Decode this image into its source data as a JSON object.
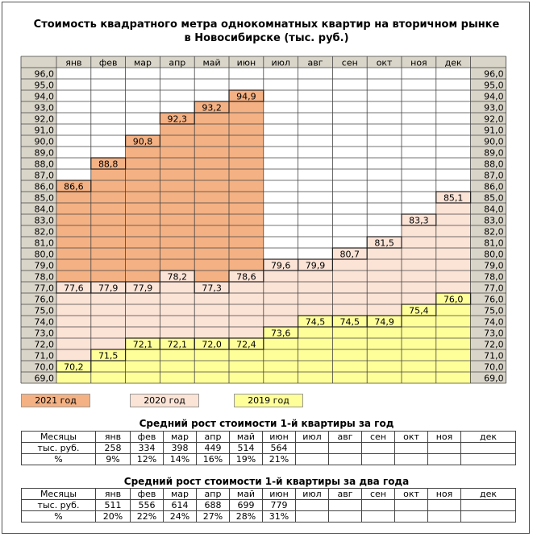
{
  "title_line1": "Стоимость квадратного метра однокомнатных квартир на вторичном рынке",
  "title_line2": "в Новосибирске (тыс. руб.)",
  "chart_data": {
    "type": "bar",
    "title": "Стоимость квадратного метра однокомнатных квартир на вторичном рынке в Новосибирске (тыс. руб.)",
    "categories": [
      "янв",
      "фев",
      "мар",
      "апр",
      "май",
      "июн",
      "июл",
      "авг",
      "сен",
      "окт",
      "ноя",
      "дек"
    ],
    "ylim": [
      69,
      96
    ],
    "y_ticks": [
      "96,0",
      "95,0",
      "94,0",
      "93,0",
      "92,0",
      "91,0",
      "90,0",
      "89,0",
      "88,0",
      "87,0",
      "86,0",
      "85,0",
      "84,0",
      "83,0",
      "82,0",
      "81,0",
      "80,0",
      "79,0",
      "78,0",
      "77,0",
      "76,0",
      "75,0",
      "74,0",
      "73,0",
      "72,0",
      "71,0",
      "70,0",
      "69,0"
    ],
    "series": [
      {
        "name": "2021 год",
        "color": "#f4b183",
        "values": [
          86.6,
          88.8,
          90.8,
          92.3,
          93.2,
          94.9,
          null,
          null,
          null,
          null,
          null,
          null
        ],
        "labels": [
          "86,6",
          "88,8",
          "90,8",
          "92,3",
          "93,2",
          "94,9",
          "",
          "",
          "",
          "",
          "",
          ""
        ]
      },
      {
        "name": "2020 год",
        "color": "#fbe3d6",
        "values": [
          77.6,
          77.9,
          77.9,
          78.2,
          77.3,
          78.6,
          79.6,
          79.9,
          80.7,
          81.5,
          83.3,
          85.1
        ],
        "labels": [
          "77,6",
          "77,9",
          "77,9",
          "78,2",
          "77,3",
          "78,6",
          "79,6",
          "79,9",
          "80,7",
          "81,5",
          "83,3",
          "85,1"
        ]
      },
      {
        "name": "2019 год",
        "color": "#ffff99",
        "values": [
          70.2,
          71.5,
          72.1,
          72.1,
          72.0,
          72.4,
          73.6,
          74.5,
          74.5,
          74.9,
          75.4,
          76.0
        ],
        "labels": [
          "70,2",
          "71,5",
          "72,1",
          "72,1",
          "72,0",
          "72,4",
          "73,6",
          "74,5",
          "74,5",
          "74,9",
          "75,4",
          "76,0"
        ]
      }
    ],
    "legend_position": "bottom"
  },
  "legend": [
    "2021 год",
    "2020 год",
    "2019 год"
  ],
  "table1": {
    "title": "Средний рост стоимости 1-й квартиры за год",
    "header_label": "Месяцы",
    "months": [
      "янв",
      "фев",
      "мар",
      "апр",
      "май",
      "июн",
      "июл",
      "авг",
      "сен",
      "окт",
      "ноя",
      "дек"
    ],
    "rows": [
      {
        "label": "тыс. руб.",
        "values": [
          "258",
          "334",
          "398",
          "449",
          "514",
          "564",
          "",
          "",
          "",
          "",
          "",
          ""
        ]
      },
      {
        "label": "%",
        "values": [
          "9%",
          "12%",
          "14%",
          "16%",
          "19%",
          "21%",
          "",
          "",
          "",
          "",
          "",
          ""
        ]
      }
    ]
  },
  "table2": {
    "title": "Средний рост стоимости 1-й квартиры за два года",
    "header_label": "Месяцы",
    "months": [
      "янв",
      "фев",
      "мар",
      "апр",
      "май",
      "июн",
      "июл",
      "авг",
      "сен",
      "окт",
      "ноя",
      "дек"
    ],
    "rows": [
      {
        "label": "тыс. руб.",
        "values": [
          "511",
          "556",
          "614",
          "688",
          "699",
          "779",
          "",
          "",
          "",
          "",
          "",
          ""
        ]
      },
      {
        "label": "%",
        "values": [
          "20%",
          "22%",
          "24%",
          "27%",
          "28%",
          "31%",
          "",
          "",
          "",
          "",
          "",
          ""
        ]
      }
    ]
  },
  "colors": {
    "y2021": "#f4b183",
    "y2020": "#fbe3d6",
    "y2019": "#ffff99",
    "header": "#d9d5c9"
  }
}
